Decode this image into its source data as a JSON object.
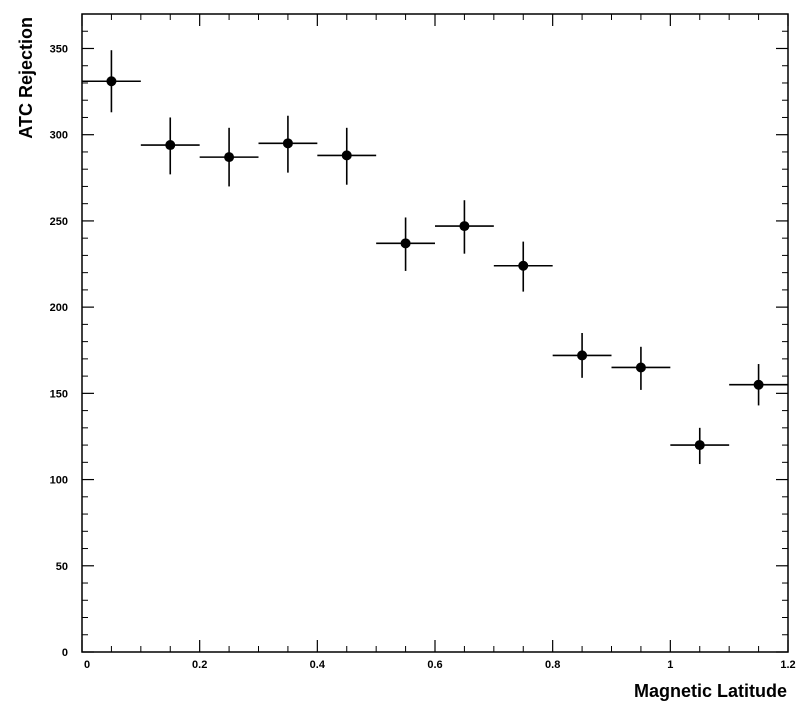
{
  "chart_data": {
    "type": "scatter",
    "title": "",
    "xlabel": "Magnetic Latitude",
    "ylabel": "ATC Rejection",
    "xlim": [
      0,
      1.2
    ],
    "ylim": [
      0,
      370
    ],
    "x_ticks": [
      0,
      0.2,
      0.4,
      0.6,
      0.8,
      1,
      1.2
    ],
    "x_tick_labels": [
      "0",
      "0.2",
      "0.4",
      "0.6",
      "0.8",
      "1",
      "1.2"
    ],
    "y_ticks": [
      0,
      50,
      100,
      150,
      200,
      250,
      300,
      350
    ],
    "y_tick_labels": [
      "0",
      "50",
      "100",
      "150",
      "200",
      "250",
      "300",
      "350"
    ],
    "grid": false,
    "marker_color": "#000000",
    "points": [
      {
        "x": 0.05,
        "y": 331,
        "xerr": 0.05,
        "yerr_low": 18,
        "yerr_high": 18
      },
      {
        "x": 0.15,
        "y": 294,
        "xerr": 0.05,
        "yerr_low": 17,
        "yerr_high": 16
      },
      {
        "x": 0.25,
        "y": 287,
        "xerr": 0.05,
        "yerr_low": 17,
        "yerr_high": 17
      },
      {
        "x": 0.35,
        "y": 295,
        "xerr": 0.05,
        "yerr_low": 17,
        "yerr_high": 16
      },
      {
        "x": 0.45,
        "y": 288,
        "xerr": 0.05,
        "yerr_low": 17,
        "yerr_high": 16
      },
      {
        "x": 0.55,
        "y": 237,
        "xerr": 0.05,
        "yerr_low": 16,
        "yerr_high": 15
      },
      {
        "x": 0.65,
        "y": 247,
        "xerr": 0.05,
        "yerr_low": 16,
        "yerr_high": 15
      },
      {
        "x": 0.75,
        "y": 224,
        "xerr": 0.05,
        "yerr_low": 15,
        "yerr_high": 14
      },
      {
        "x": 0.85,
        "y": 172,
        "xerr": 0.05,
        "yerr_low": 13,
        "yerr_high": 13
      },
      {
        "x": 0.95,
        "y": 165,
        "xerr": 0.05,
        "yerr_low": 13,
        "yerr_high": 12
      },
      {
        "x": 1.05,
        "y": 120,
        "xerr": 0.05,
        "yerr_low": 11,
        "yerr_high": 10
      },
      {
        "x": 1.15,
        "y": 155,
        "xerr": 0.05,
        "yerr_low": 12,
        "yerr_high": 12
      }
    ]
  }
}
